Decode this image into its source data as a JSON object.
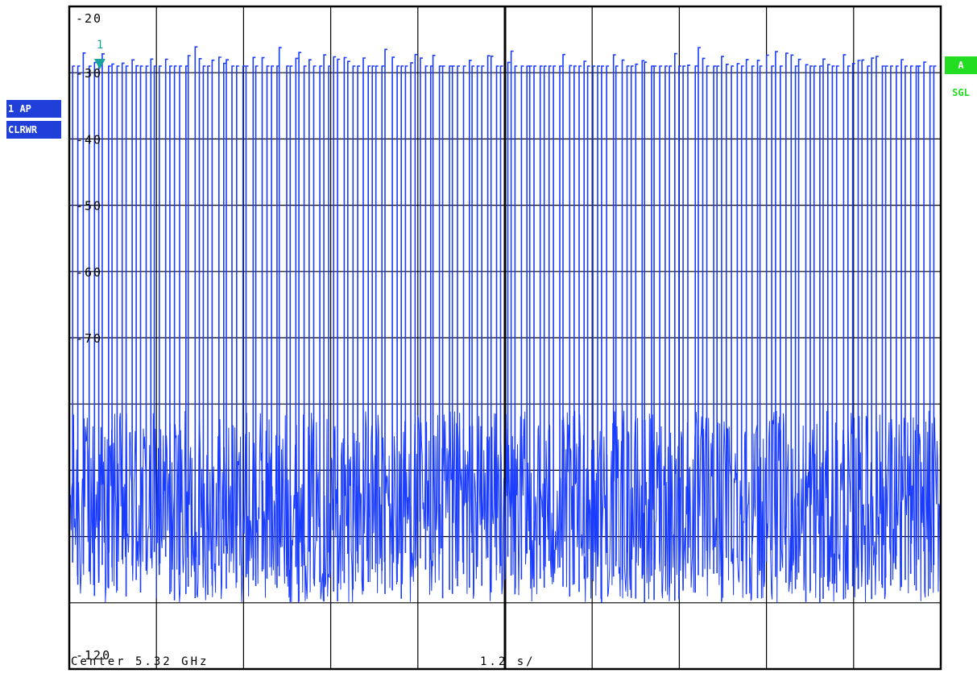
{
  "colors": {
    "trace": "#1a3cff",
    "grid": "#000000",
    "background": "#ffffff",
    "marker": "#1aa39a",
    "badge_blue": "#1f3fd8",
    "badge_green": "#22dd22",
    "sgl_text": "#22dd22"
  },
  "left_badges": {
    "trace_mode": "1 AP",
    "detector": "CLRWR"
  },
  "right_badges": {
    "trigger": "A",
    "sweep": "SGL"
  },
  "footer": {
    "center": "Center 5.32 GHz",
    "span": "1.2 s/"
  },
  "marker": {
    "label": "1",
    "icon": "triangle-down-marker-icon",
    "x": 0.35
  },
  "chart_data": {
    "type": "line",
    "title": "",
    "xlabel": "",
    "ylabel": "",
    "ylim": [
      -120,
      -20
    ],
    "y_tick_labels": [
      {
        "value": -20,
        "label": "-20"
      },
      {
        "value": -30,
        "label": "-30"
      },
      {
        "value": -40,
        "label": "-40"
      },
      {
        "value": -50,
        "label": "-50"
      },
      {
        "value": -60,
        "label": "-60"
      },
      {
        "value": -70,
        "label": "-70"
      },
      {
        "value": -120,
        "label": "-120"
      }
    ],
    "x_range": [
      0,
      12
    ],
    "x_unit_per_div": "1.2 s/",
    "grid": true,
    "grid_divisions": {
      "x": 10,
      "y": 10
    },
    "series": [
      {
        "pulse_count": 180,
        "noise_floor_range": [
          -110,
          -81
        ],
        "pulse_peak_levels": [
          -30,
          -62
        ],
        "pulse_peak_max": -29,
        "dense_floor_top": -81
      }
    ]
  }
}
